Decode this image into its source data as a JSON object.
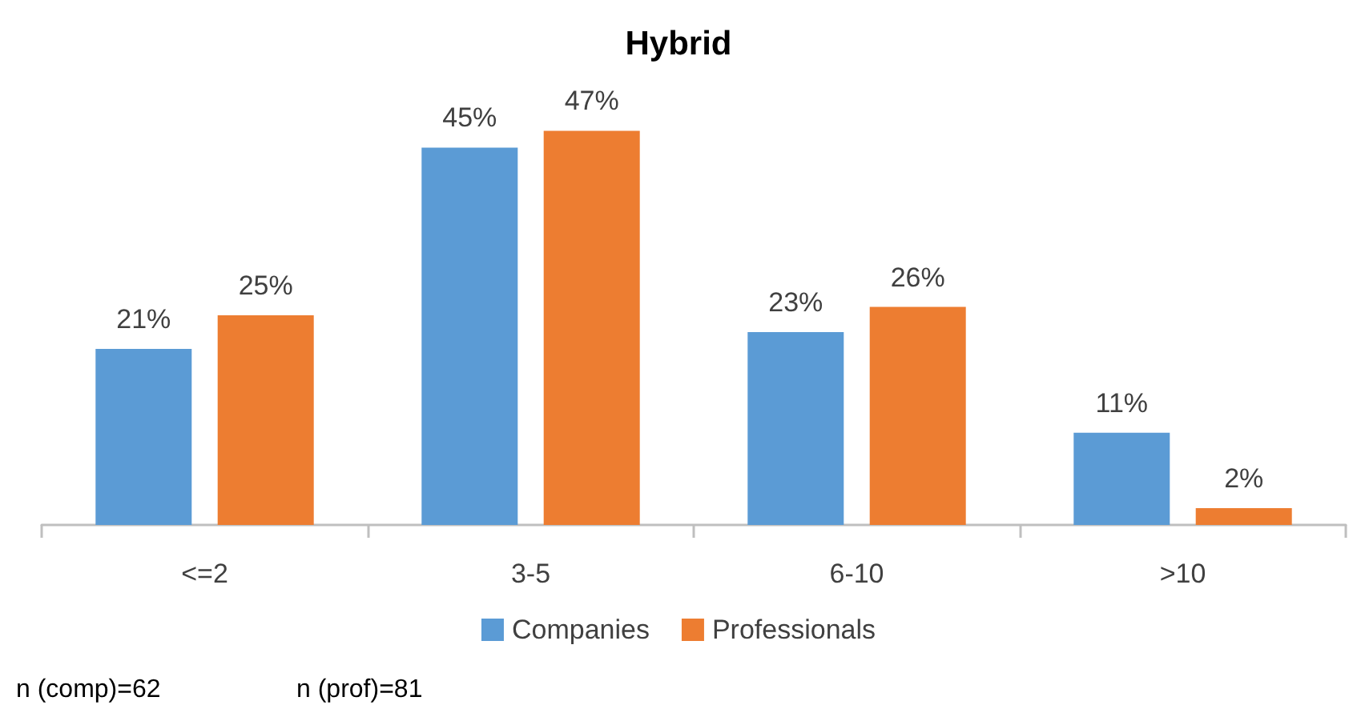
{
  "chart_data": {
    "type": "bar",
    "title": "Hybrid",
    "categories": [
      "<=2",
      "3-5",
      "6-10",
      ">10"
    ],
    "series": [
      {
        "name": "Companies",
        "color": "#5b9bd5",
        "values": [
          21,
          45,
          23,
          11
        ],
        "value_labels": [
          "21%",
          "45%",
          "23%",
          "11%"
        ]
      },
      {
        "name": "Professionals",
        "color": "#ed7d31",
        "values": [
          25,
          47,
          26,
          2
        ],
        "value_labels": [
          "25%",
          "47%",
          "26%",
          "2%"
        ]
      }
    ],
    "legend": "bottom",
    "annotations": [
      "n (comp)=62",
      "n (prof)=81"
    ]
  }
}
